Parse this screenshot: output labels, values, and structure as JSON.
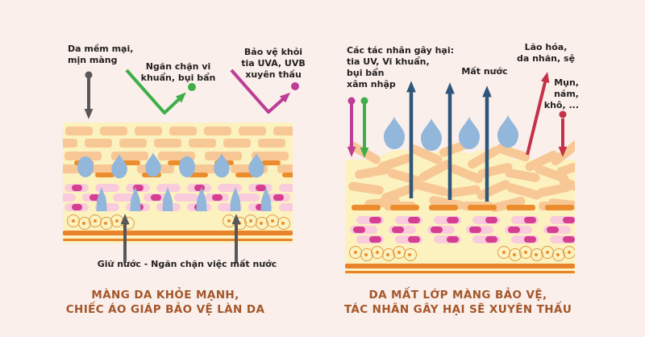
{
  "left_panel": {
    "label_soft_skin": "Da mềm mại,\nmịn màng",
    "label_block_germs": "Ngăn chặn vi\nkhuẩn, bụi bẩn",
    "label_uv_protection": "Bảo vệ khỏi\ntia UVA, UVB\nxuyên thấu",
    "label_retain_water": "Giữ nước - Ngăn chặn việc mất nước",
    "caption": "MÀNG DA KHỎE MẠNH,\nCHIẾC ÁO GIÁP BẢO VỆ LÀN DA"
  },
  "right_panel": {
    "label_harmful_agents": "Các tác nhân gây hại:\ntia UV, Vi khuẩn,\nbụi bẩn\nxâm nhập",
    "label_water_loss": "Mất nước",
    "label_aging": "Lão hóa,\nda nhăn, sệ",
    "label_skin_issues": "Mụn,\nnám,\nkhô, ...",
    "caption": "DA MẤT LỚP MÀNG BẢO VỆ,\nTÁC NHÂN GÂY HẠI SẼ XUYÊN THẤU"
  },
  "colors": {
    "background": "#FAEFEA",
    "caption_brown": "#A4562B",
    "label_black": "#231F20",
    "arrow_gray": "#59565A",
    "arrow_green": "#3FAE49",
    "arrow_magenta": "#BE3D97",
    "arrow_navy": "#2E567A",
    "arrow_red": "#C43148",
    "droplet_blue": "#92B7DB",
    "skin_cream": "#FCF2BF",
    "brick_peach": "#F7C795",
    "bar_orange": "#EC8C2C",
    "cell_pink": "#F9CBDC",
    "nucleus_magenta": "#D63F90",
    "circle_outline": "#DE9A44",
    "line_orange": "#E8832B"
  }
}
